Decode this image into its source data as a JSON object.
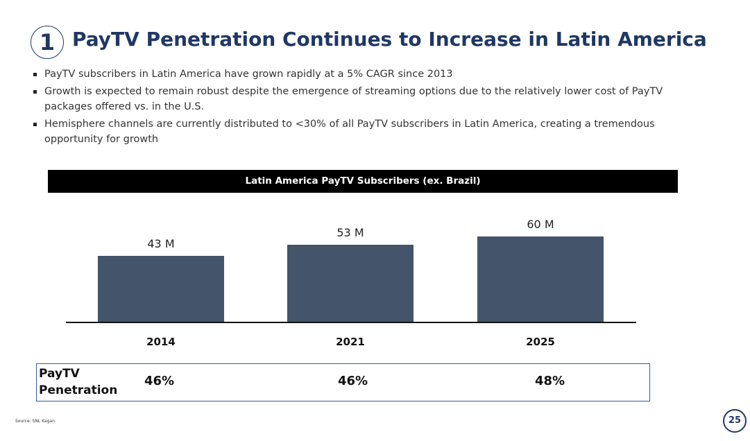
{
  "header": {
    "number": "1",
    "title": "PayTV Penetration Continues to Increase in Latin America"
  },
  "bullets": [
    "PayTV subscribers in Latin America have grown rapidly at a 5% CAGR since 2013",
    "Growth is expected to remain robust despite the emergence of streaming options due to the relatively lower cost of PayTV packages offered vs. in the U.S.",
    "Hemisphere channels are currently distributed to <30% of all PayTV subscribers in Latin America, creating a tremendous opportunity for growth"
  ],
  "chart_data": {
    "type": "bar",
    "title": "Latin America PayTV Subscribers (ex. Brazil)",
    "categories": [
      "2014",
      "2021",
      "2025"
    ],
    "values": [
      43,
      53,
      60
    ],
    "data_labels": [
      "43 M",
      "53 M",
      "60 M"
    ],
    "unit": "M",
    "color": "#44546a"
  },
  "penetration": {
    "label": "PayTV Penetration",
    "values": [
      "46%",
      "46%",
      "48%"
    ]
  },
  "footer": {
    "source": "Source: SNL Kagan",
    "page": "25"
  }
}
